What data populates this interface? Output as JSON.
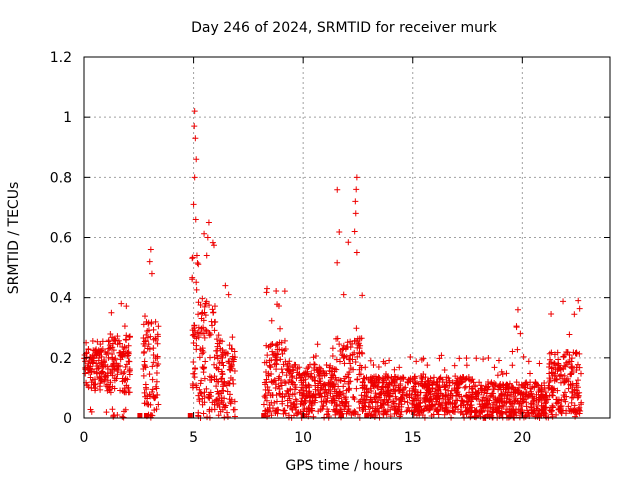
{
  "chart_data": {
    "type": "scatter",
    "title": "Day 246 of 2024, SRMTID for receiver murk",
    "xlabel": "GPS time / hours",
    "ylabel": "SRMTID / TECUs",
    "xlim": [
      0,
      24
    ],
    "ylim": [
      0,
      1.2
    ],
    "xticks": [
      0,
      5,
      10,
      15,
      20
    ],
    "xtick_labels": [
      "0",
      "5",
      "10",
      "15",
      "20"
    ],
    "yticks": [
      0,
      0.2,
      0.4,
      0.6,
      0.8,
      1.0,
      1.2
    ],
    "ytick_labels": [
      "0",
      "0.2",
      "0.4",
      "0.6",
      "0.8",
      "1",
      "1.2"
    ],
    "grid": true,
    "marker": "plus",
    "color": "#ee0000",
    "segments": [
      {
        "t0": 0.0,
        "t1": 1.1,
        "base": 0.16,
        "amp": 0.07,
        "spike": 0.26
      },
      {
        "t0": 1.1,
        "t1": 2.1,
        "base": 0.18,
        "amp": 0.1,
        "spike": 0.38
      },
      {
        "t0": 2.7,
        "t1": 3.4,
        "base": 0.18,
        "amp": 0.14,
        "spike": 0.56
      },
      {
        "t0": 4.9,
        "t1": 5.3,
        "base": 0.3,
        "amp": 0.25,
        "spike": 1.02
      },
      {
        "t0": 5.3,
        "t1": 6.0,
        "base": 0.22,
        "amp": 0.18,
        "spike": 0.65
      },
      {
        "t0": 6.0,
        "t1": 6.9,
        "base": 0.15,
        "amp": 0.12,
        "spike": 0.44
      },
      {
        "t0": 8.2,
        "t1": 9.2,
        "base": 0.14,
        "amp": 0.12,
        "spike": 0.43
      },
      {
        "t0": 9.2,
        "t1": 11.5,
        "base": 0.1,
        "amp": 0.08,
        "spike": 0.25
      },
      {
        "t0": 11.5,
        "t1": 12.7,
        "base": 0.14,
        "amp": 0.13,
        "spike": 0.8
      },
      {
        "t0": 12.7,
        "t1": 17.8,
        "base": 0.08,
        "amp": 0.06,
        "spike": 0.21
      },
      {
        "t0": 17.8,
        "t1": 19.5,
        "base": 0.06,
        "amp": 0.06,
        "spike": 0.2
      },
      {
        "t0": 19.5,
        "t1": 21.2,
        "base": 0.06,
        "amp": 0.06,
        "spike": 0.36
      },
      {
        "t0": 21.2,
        "t1": 22.7,
        "base": 0.12,
        "amp": 0.1,
        "spike": 0.39
      }
    ],
    "spikes": [
      {
        "x": 5.05,
        "y": 1.02
      },
      {
        "x": 5.08,
        "y": 0.93
      },
      {
        "x": 5.12,
        "y": 0.86
      },
      {
        "x": 5.05,
        "y": 0.8
      },
      {
        "x": 5.0,
        "y": 0.71
      },
      {
        "x": 5.1,
        "y": 0.66
      },
      {
        "x": 5.7,
        "y": 0.65
      },
      {
        "x": 5.65,
        "y": 0.6
      },
      {
        "x": 5.6,
        "y": 0.54
      },
      {
        "x": 12.45,
        "y": 0.8
      },
      {
        "x": 12.42,
        "y": 0.76
      },
      {
        "x": 12.38,
        "y": 0.72
      },
      {
        "x": 12.4,
        "y": 0.68
      },
      {
        "x": 12.35,
        "y": 0.62
      },
      {
        "x": 12.45,
        "y": 0.55
      },
      {
        "x": 3.05,
        "y": 0.56
      },
      {
        "x": 3.0,
        "y": 0.52
      },
      {
        "x": 3.1,
        "y": 0.48
      },
      {
        "x": 1.7,
        "y": 0.38
      },
      {
        "x": 1.25,
        "y": 0.35
      },
      {
        "x": 8.35,
        "y": 0.43
      },
      {
        "x": 11.85,
        "y": 0.41
      },
      {
        "x": 19.8,
        "y": 0.36
      },
      {
        "x": 22.55,
        "y": 0.39
      },
      {
        "x": 6.45,
        "y": 0.44
      },
      {
        "x": 6.6,
        "y": 0.41
      }
    ],
    "zero_squares": [
      2.55,
      2.85,
      4.85,
      8.2,
      10.0,
      11.75,
      12.9
    ]
  }
}
